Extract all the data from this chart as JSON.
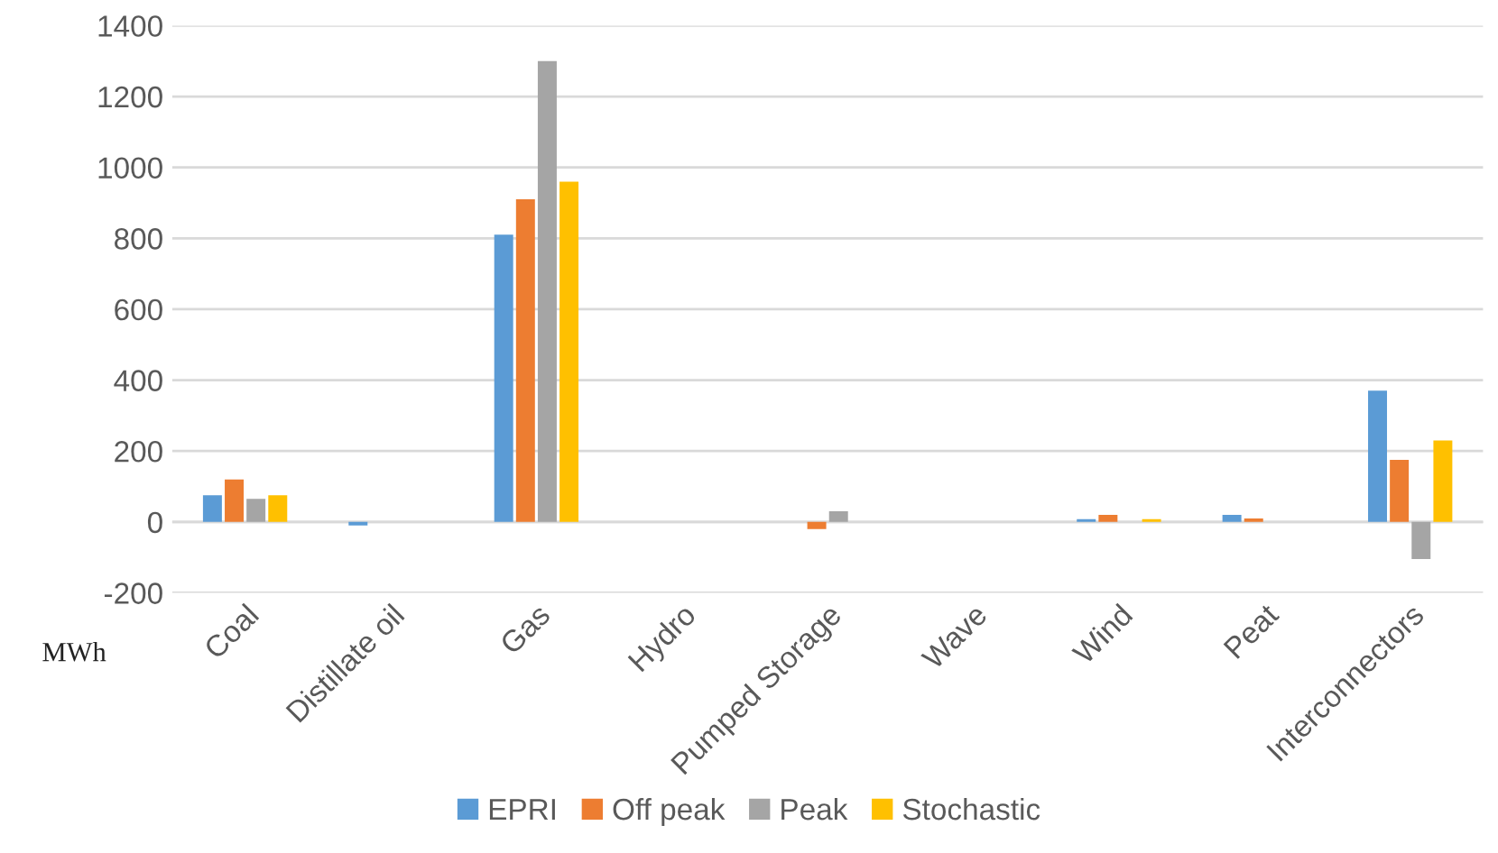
{
  "chart_data": {
    "type": "bar",
    "categories": [
      "Coal",
      "Distillate oil",
      "Gas",
      "Hydro",
      "Pumped Storage",
      "Wave",
      "Wind",
      "Peat",
      "Interconnectors"
    ],
    "series": [
      {
        "name": "EPRI",
        "color": "#5b9bd5",
        "values": [
          75,
          -10,
          810,
          0,
          0,
          0,
          8,
          20,
          370
        ]
      },
      {
        "name": "Off peak",
        "color": "#ed7d31",
        "values": [
          120,
          0,
          910,
          0,
          -20,
          0,
          20,
          10,
          175
        ]
      },
      {
        "name": "Peak",
        "color": "#a5a5a5",
        "values": [
          65,
          0,
          1300,
          0,
          30,
          0,
          0,
          0,
          -105
        ]
      },
      {
        "name": "Stochastic",
        "color": "#ffc000",
        "values": [
          75,
          0,
          960,
          0,
          0,
          0,
          8,
          0,
          230
        ]
      }
    ],
    "ylim": [
      -200,
      1400
    ],
    "yticks": [
      -200,
      0,
      200,
      400,
      600,
      800,
      1000,
      1200,
      1400
    ],
    "annotations": [
      "MWh"
    ],
    "grid": "y",
    "legend": "bottom"
  }
}
